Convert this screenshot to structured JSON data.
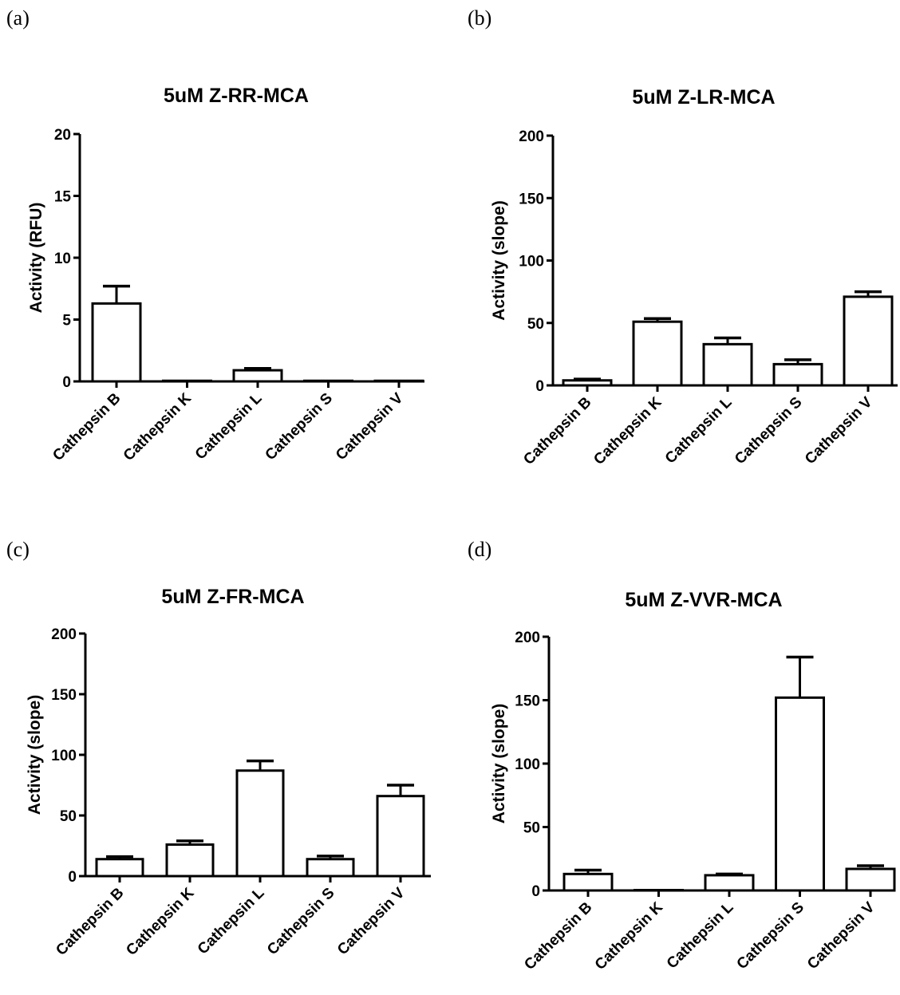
{
  "panels": [
    {
      "letter": "(a)"
    },
    {
      "letter": "(b)"
    },
    {
      "letter": "(c)"
    },
    {
      "letter": "(d)"
    }
  ],
  "chart_data": [
    {
      "type": "bar",
      "title": "5uM Z-RR-MCA",
      "ylabel": "Activity (RFU)",
      "xlabel": "",
      "ylim": [
        0,
        20
      ],
      "yticks": [
        0,
        5,
        10,
        15,
        20
      ],
      "categories": [
        "Cathepsin B",
        "Cathepsin K",
        "Cathepsin L",
        "Cathepsin S",
        "Cathepsin V"
      ],
      "values": [
        6.3,
        0.05,
        0.9,
        0.05,
        0.05
      ],
      "error": [
        1.4,
        0,
        0.15,
        0,
        0
      ],
      "grid": false,
      "bar_color": "#ffffff",
      "edge_color": "#000000"
    },
    {
      "type": "bar",
      "title": "5uM Z-LR-MCA",
      "ylabel": "Activity (slope)",
      "xlabel": "",
      "ylim": [
        0,
        200
      ],
      "yticks": [
        0,
        50,
        100,
        150,
        200
      ],
      "categories": [
        "Cathepsin B",
        "Cathepsin K",
        "Cathepsin L",
        "Cathepsin S",
        "Cathepsin V"
      ],
      "values": [
        4,
        51,
        33,
        17,
        71
      ],
      "error": [
        1,
        2.5,
        5,
        3.5,
        4
      ],
      "grid": false,
      "bar_color": "#ffffff",
      "edge_color": "#000000"
    },
    {
      "type": "bar",
      "title": "5uM Z-FR-MCA",
      "ylabel": "Activity (slope)",
      "xlabel": "",
      "ylim": [
        0,
        200
      ],
      "yticks": [
        0,
        50,
        100,
        150,
        200
      ],
      "categories": [
        "Cathepsin B",
        "Cathepsin K",
        "Cathepsin L",
        "Cathepsin S",
        "Cathepsin V"
      ],
      "values": [
        14,
        26,
        87,
        14,
        66
      ],
      "error": [
        2,
        3,
        8,
        2.5,
        9
      ],
      "grid": false,
      "bar_color": "#ffffff",
      "edge_color": "#000000"
    },
    {
      "type": "bar",
      "title": "5uM Z-VVR-MCA",
      "ylabel": "Activity (slope)",
      "xlabel": "",
      "ylim": [
        0,
        200
      ],
      "yticks": [
        0,
        50,
        100,
        150,
        200
      ],
      "categories": [
        "Cathepsin B",
        "Cathepsin K",
        "Cathepsin L",
        "Cathepsin S",
        "Cathepsin V"
      ],
      "values": [
        13,
        0.3,
        12,
        152,
        17
      ],
      "error": [
        3,
        0,
        1,
        32,
        2.5
      ],
      "grid": false,
      "bar_color": "#ffffff",
      "edge_color": "#000000"
    }
  ]
}
